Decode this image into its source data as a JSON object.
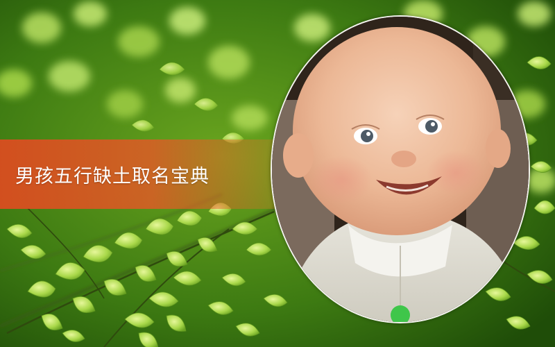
{
  "title": "男孩五行缺土取名宝典",
  "colors": {
    "banner": "#e24a20",
    "background_green": "#3f7a12",
    "leaf_green": "#b8e05a",
    "title_text": "#ffffff"
  },
  "image": {
    "background": "blurred-fern-leaves",
    "portrait": "smiling-baby-photo"
  }
}
